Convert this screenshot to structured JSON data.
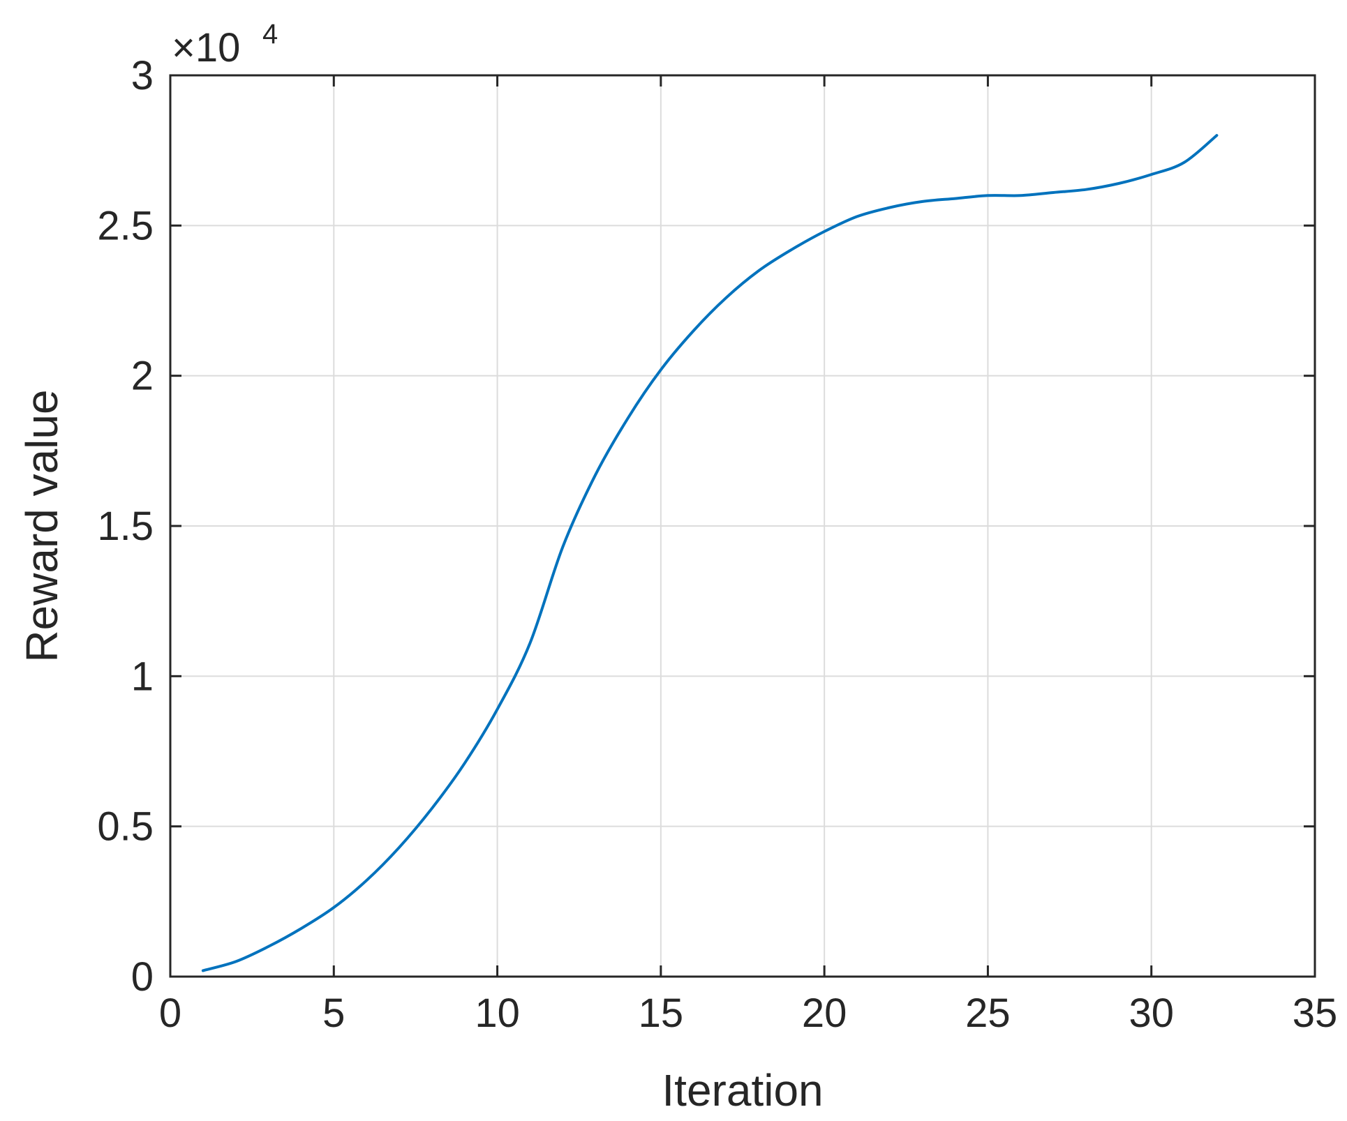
{
  "chart_data": {
    "type": "line",
    "title": "",
    "xlabel": "Iteration",
    "ylabel": "Reward value",
    "y_multiplier": "×10",
    "y_exponent": "4",
    "xlim": [
      0,
      35
    ],
    "ylim": [
      0,
      3
    ],
    "x_ticks": [
      0,
      5,
      10,
      15,
      20,
      25,
      30,
      35
    ],
    "x_tick_labels": [
      "0",
      "5",
      "10",
      "15",
      "20",
      "25",
      "30",
      "35"
    ],
    "y_ticks": [
      0,
      0.5,
      1,
      1.5,
      2,
      2.5,
      3
    ],
    "y_tick_labels": [
      "0",
      "0.5",
      "1",
      "1.5",
      "2",
      "2.5",
      "3"
    ],
    "grid": true,
    "legend": "none",
    "series": [
      {
        "color": "#0072BD",
        "x": [
          1,
          2,
          3,
          4,
          5,
          6,
          7,
          8,
          9,
          10,
          11,
          12,
          13,
          14,
          15,
          16,
          17,
          18,
          19,
          20,
          21,
          22,
          23,
          24,
          25,
          26,
          27,
          28,
          29,
          30,
          31,
          32
        ],
        "y": [
          0.02,
          0.05,
          0.1,
          0.16,
          0.23,
          0.32,
          0.43,
          0.56,
          0.71,
          0.89,
          1.11,
          1.43,
          1.67,
          1.86,
          2.02,
          2.15,
          2.26,
          2.35,
          2.42,
          2.48,
          2.53,
          2.56,
          2.58,
          2.59,
          2.6,
          2.6,
          2.61,
          2.62,
          2.64,
          2.67,
          2.71,
          2.8
        ]
      }
    ]
  }
}
